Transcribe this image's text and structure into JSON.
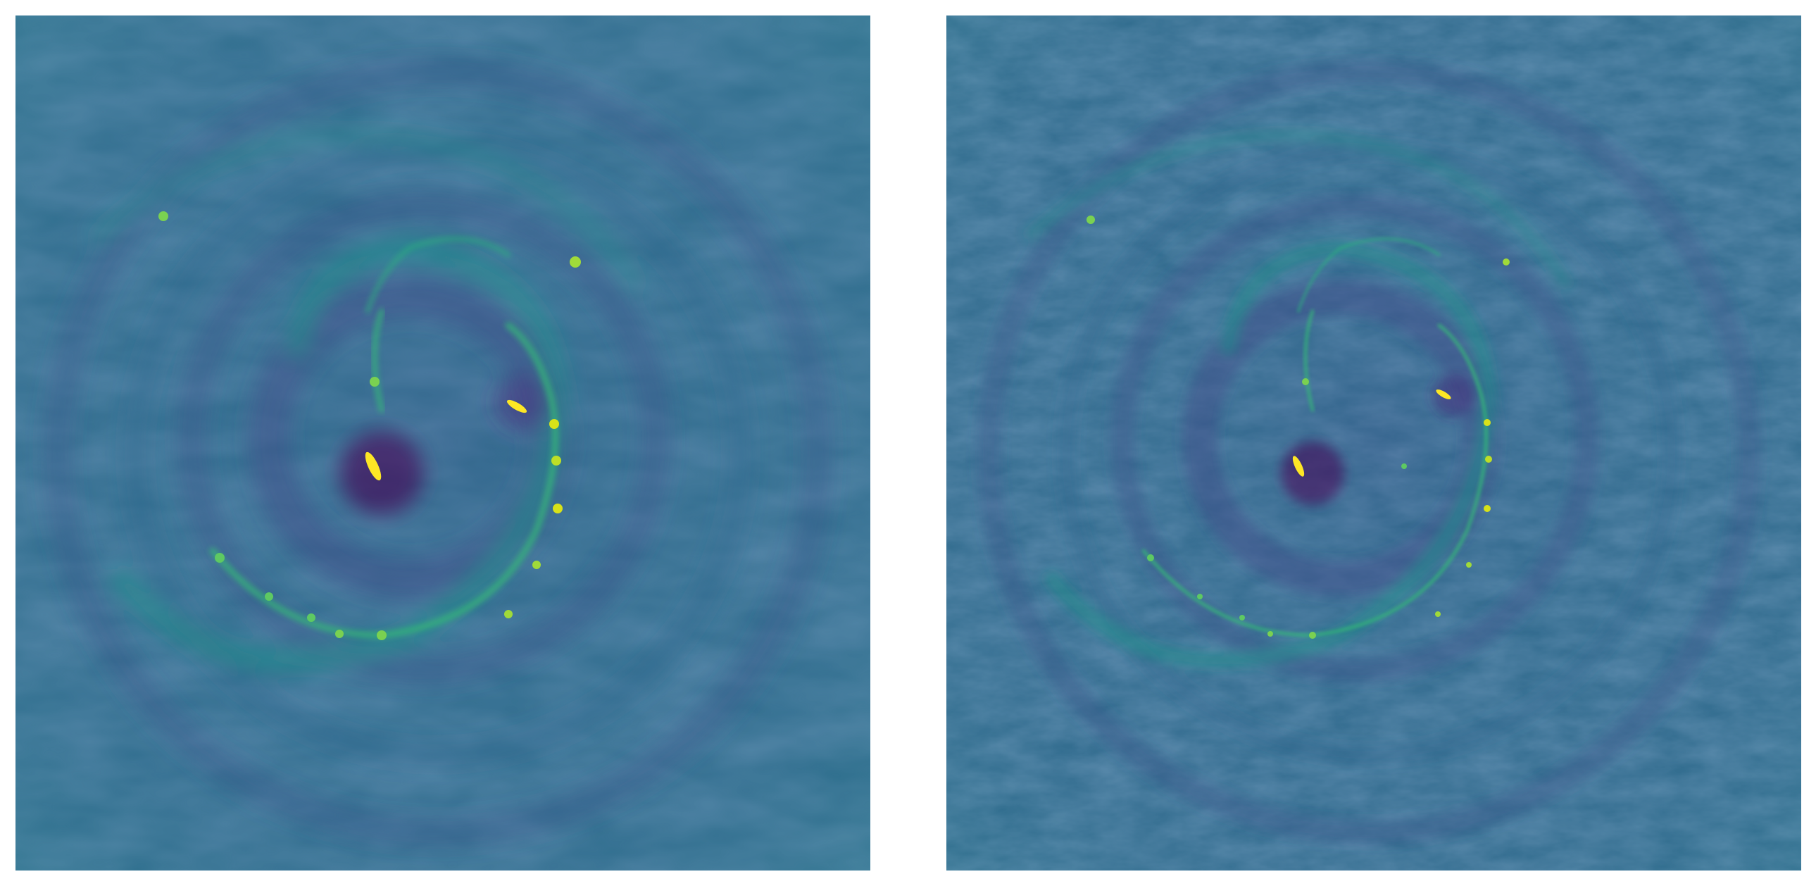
{
  "figure": {
    "panels": [
      {
        "id": "left",
        "colormap": "viridis",
        "smoothness": "smooth"
      },
      {
        "id": "right",
        "colormap": "viridis",
        "smoothness": "fine-grained"
      }
    ],
    "colors": {
      "background": "#ffffff",
      "viridis_dark": "#440154",
      "viridis_mid_dark": "#3b528b",
      "viridis_mid": "#2c728e",
      "viridis_teal": "#21918c",
      "viridis_green": "#5ec962",
      "viridis_yellow": "#fde725"
    }
  }
}
